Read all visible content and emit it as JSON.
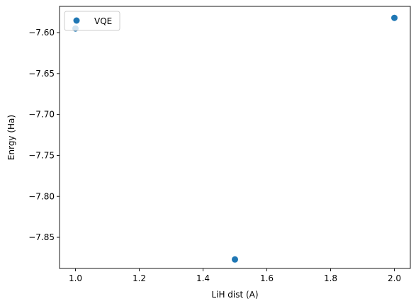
{
  "chart_data": {
    "type": "scatter",
    "xlabel": "LiH dist (A)",
    "ylabel": "Enrgy (Ha)",
    "xlim": [
      0.95,
      2.05
    ],
    "ylim": [
      -7.888,
      -7.568
    ],
    "xticks": [
      1.0,
      1.2,
      1.4,
      1.6,
      1.8,
      2.0
    ],
    "xtick_labels": [
      "1.0",
      "1.2",
      "1.4",
      "1.6",
      "1.8",
      "2.0"
    ],
    "yticks": [
      -7.85,
      -7.8,
      -7.75,
      -7.7,
      -7.65,
      -7.6
    ],
    "ytick_labels": [
      "−7.85",
      "−7.80",
      "−7.75",
      "−7.70",
      "−7.65",
      "−7.60"
    ],
    "grid": false,
    "legend_position": "top-left",
    "series": [
      {
        "name": "VQE",
        "color": "#1f77b4",
        "marker": "circle",
        "x": [
          1.0,
          1.5,
          2.0
        ],
        "y": [
          -7.595,
          -7.877,
          -7.582
        ]
      }
    ]
  }
}
